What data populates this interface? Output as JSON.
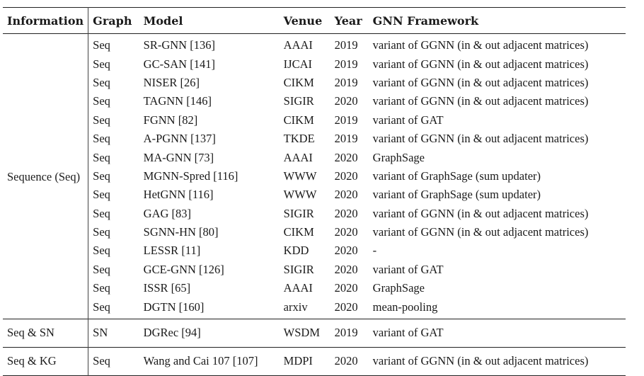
{
  "headers": [
    "Information",
    "Graph",
    "Model",
    "Venue",
    "Year",
    "GNN Framework"
  ],
  "groups": [
    {
      "info": "Sequence (Seq)",
      "rows": [
        {
          "graph": "Seq",
          "model": "SR-GNN [136]",
          "venue": "AAAI",
          "year": "2019",
          "framework": "variant of GGNN (in & out adjacent matrices)"
        },
        {
          "graph": "Seq",
          "model": "GC-SAN [141]",
          "venue": "IJCAI",
          "year": "2019",
          "framework": "variant of GGNN (in & out adjacent matrices)"
        },
        {
          "graph": "Seq",
          "model": "NISER [26]",
          "venue": "CIKM",
          "year": "2019",
          "framework": "variant of GGNN (in & out adjacent matrices)"
        },
        {
          "graph": "Seq",
          "model": "TAGNN [146]",
          "venue": "SIGIR",
          "year": "2020",
          "framework": "variant of GGNN (in & out adjacent matrices)"
        },
        {
          "graph": "Seq",
          "model": "FGNN [82]",
          "venue": "CIKM",
          "year": "2019",
          "framework": "variant of GAT"
        },
        {
          "graph": "Seq",
          "model": "A-PGNN [137]",
          "venue": "TKDE",
          "year": "2019",
          "framework": "variant of GGNN (in & out adjacent matrices)"
        },
        {
          "graph": "Seq",
          "model": "MA-GNN [73]",
          "venue": "AAAI",
          "year": "2020",
          "framework": "GraphSage"
        },
        {
          "graph": "Seq",
          "model": "MGNN-Spred [116]",
          "venue": "WWW",
          "year": "2020",
          "framework": "variant of GraphSage (sum updater)"
        },
        {
          "graph": "Seq",
          "model": "HetGNN [116]",
          "venue": "WWW",
          "year": "2020",
          "framework": "variant of GraphSage (sum updater)"
        },
        {
          "graph": "Seq",
          "model": "GAG [83]",
          "venue": "SIGIR",
          "year": "2020",
          "framework": "variant of GGNN (in & out adjacent matrices)"
        },
        {
          "graph": "Seq",
          "model": "SGNN-HN [80]",
          "venue": "CIKM",
          "year": "2020",
          "framework": "variant of GGNN (in & out adjacent matrices)"
        },
        {
          "graph": "Seq",
          "model": "LESSR [11]",
          "venue": "KDD",
          "year": "2020",
          "framework": "-"
        },
        {
          "graph": "Seq",
          "model": "GCE-GNN [126]",
          "venue": "SIGIR",
          "year": "2020",
          "framework": "variant of GAT"
        },
        {
          "graph": "Seq",
          "model": "ISSR [65]",
          "venue": "AAAI",
          "year": "2020",
          "framework": "GraphSage"
        },
        {
          "graph": "Seq",
          "model": "DGTN [160]",
          "venue": "arxiv",
          "year": "2020",
          "framework": "mean-pooling"
        }
      ]
    },
    {
      "info": "Seq & SN",
      "rows": [
        {
          "graph": "SN",
          "model": "DGRec [94]",
          "venue": "WSDM",
          "year": "2019",
          "framework": "variant of GAT"
        }
      ]
    },
    {
      "info": "Seq & KG",
      "rows": [
        {
          "graph": "Seq",
          "model": "Wang and Cai 107 [107]",
          "venue": "MDPI",
          "year": "2020",
          "framework": "variant of GGNN (in & out adjacent matrices)"
        }
      ]
    }
  ]
}
